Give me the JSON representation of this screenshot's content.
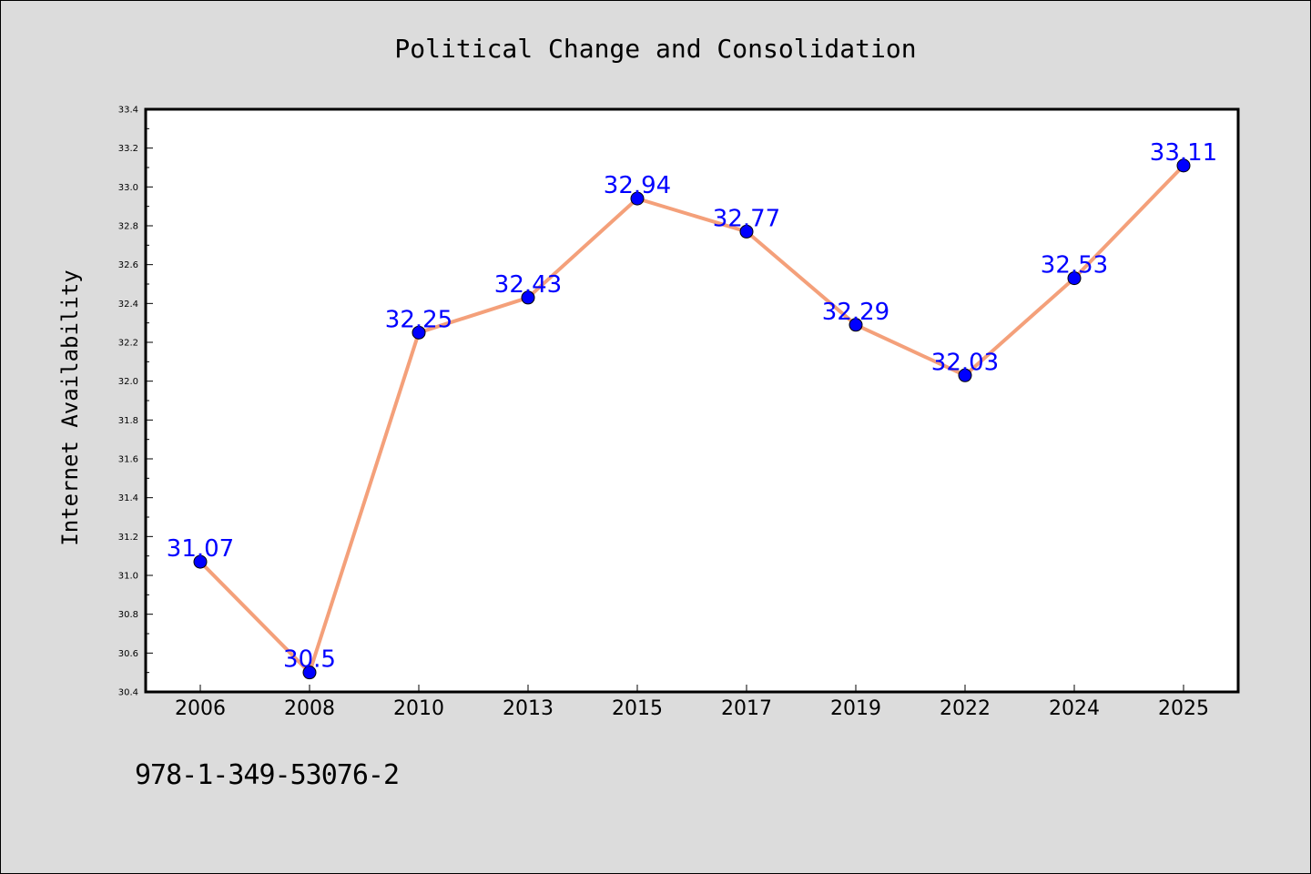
{
  "chart_data": {
    "type": "line",
    "title": "Political Change and Consolidation",
    "xlabel": "",
    "ylabel": "Internet Availability",
    "categories": [
      "2006",
      "2008",
      "2010",
      "2013",
      "2015",
      "2017",
      "2019",
      "2022",
      "2024",
      "2025"
    ],
    "series": [
      {
        "values": [
          31.07,
          30.5,
          32.25,
          32.43,
          32.94,
          32.77,
          32.29,
          32.03,
          32.53,
          33.11
        ],
        "data_labels": [
          "31.07",
          "30.5",
          "32.25",
          "32.43",
          "32.94",
          "32.77",
          "32.29",
          "32.03",
          "32.53",
          "33.11"
        ]
      }
    ],
    "ylim": [
      30.4,
      33.4
    ],
    "yticks": [
      "30.4",
      "30.6",
      "30.8",
      "31.0",
      "31.2",
      "31.4",
      "31.6",
      "31.8",
      "32.0",
      "32.2",
      "32.4",
      "32.6",
      "32.8",
      "33.0",
      "33.2",
      "33.4"
    ],
    "grid": false,
    "line_color": "#f4a07a",
    "marker_color": "#0000ff",
    "label_color": "#0000ff",
    "plot_background": "#ffffff"
  },
  "footer": {
    "isbn": "978-1-349-53076-2"
  }
}
